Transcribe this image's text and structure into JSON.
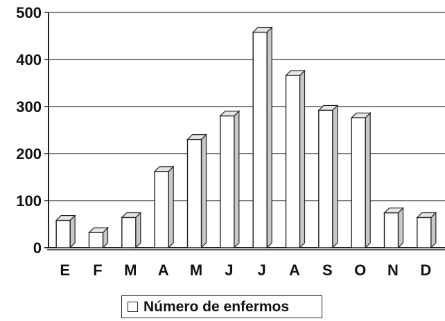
{
  "chart_data": {
    "type": "bar",
    "categories": [
      "E",
      "F",
      "M",
      "A",
      "M",
      "J",
      "J",
      "A",
      "S",
      "O",
      "N",
      "D"
    ],
    "series": [
      {
        "name": "Número de enfermos",
        "values": [
          58,
          32,
          64,
          162,
          230,
          280,
          458,
          366,
          292,
          276,
          74,
          64
        ]
      }
    ],
    "ylim": [
      0,
      500
    ],
    "yticks": [
      0,
      100,
      200,
      300,
      400,
      500
    ],
    "grid": true,
    "legend_position": "bottom",
    "bar_style": "3d",
    "colors": {
      "bar_face": "#ffffff",
      "bar_side": "#c8c8c8",
      "bar_top": "#e6e6e6",
      "outline": "#222222"
    }
  }
}
